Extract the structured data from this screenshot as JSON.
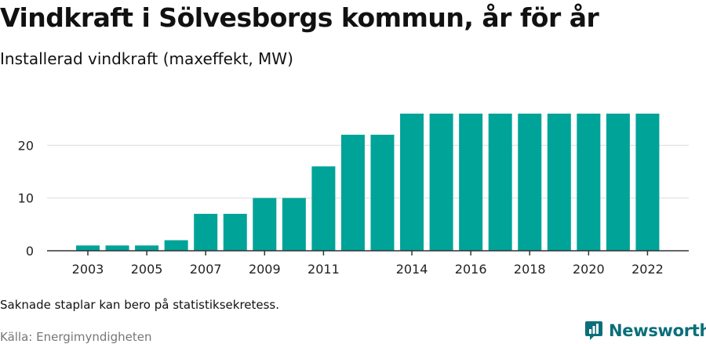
{
  "header": {
    "title": "Vindkraft i Sölvesborgs kommun, år för år",
    "subtitle": "Installerad vindkraft (maxeffekt, MW)"
  },
  "footer": {
    "note": "Saknade staplar kan bero på statistiksekretess.",
    "source": "Källa: Energimyndigheten",
    "brand": "Newsworthy",
    "brand_icon": "bar-chart-logo-icon"
  },
  "colors": {
    "bar": "#00a398",
    "grid": "#dddddd",
    "axis": "#333333",
    "brand": "#0a6f7a"
  },
  "chart_data": {
    "type": "bar",
    "categories": [
      "2003",
      "2004",
      "2005",
      "2006",
      "2007",
      "2008",
      "2009",
      "2010",
      "2011",
      "2012",
      "2013",
      "2014",
      "2015",
      "2016",
      "2017",
      "2018",
      "2019",
      "2020",
      "2021",
      "2022"
    ],
    "values": [
      1,
      1,
      1,
      2,
      7,
      7,
      10,
      10,
      16,
      22,
      22,
      26,
      26,
      26,
      26,
      26,
      26,
      26,
      26,
      26
    ],
    "x_tick_labels": [
      "2003",
      "2005",
      "2007",
      "2009",
      "2011",
      "2014",
      "2016",
      "2018",
      "2020",
      "2022"
    ],
    "y_ticks": [
      0,
      10,
      20
    ],
    "ylim": [
      0,
      26
    ],
    "grid": true
  }
}
